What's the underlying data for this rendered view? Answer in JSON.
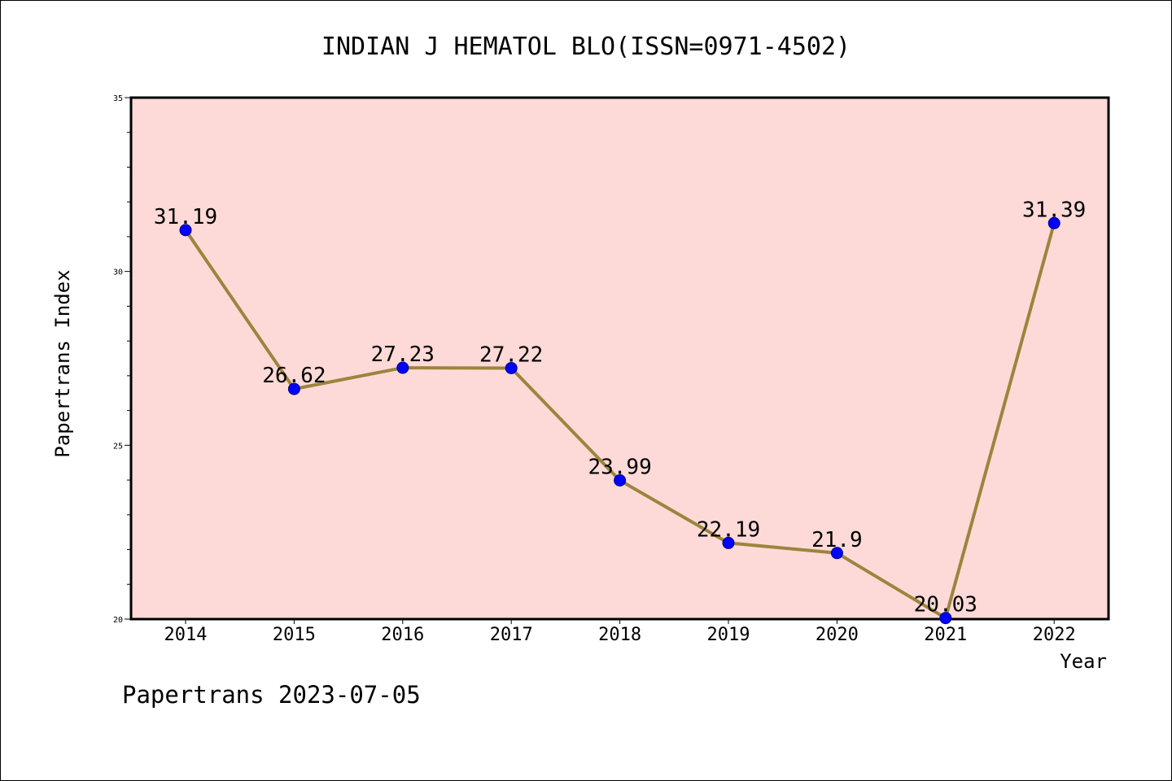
{
  "chart_data": {
    "type": "line",
    "title": "INDIAN J HEMATOL BLO(ISSN=0971-4502)",
    "xlabel": "Year",
    "ylabel": "Papertrans Index",
    "categories": [
      "2014",
      "2015",
      "2016",
      "2017",
      "2018",
      "2019",
      "2020",
      "2021",
      "2022"
    ],
    "values": [
      31.19,
      26.62,
      27.23,
      27.22,
      23.99,
      22.19,
      21.9,
      20.03,
      31.39
    ],
    "data_labels": [
      "31.19",
      "26.62",
      "27.23",
      "27.22",
      "23.99",
      "22.19",
      "21.9",
      "20.03",
      "31.39"
    ],
    "ylim": [
      20,
      35
    ],
    "yticks": [
      20,
      25,
      30,
      35
    ],
    "ytick_labels": [
      "20",
      "25",
      "30",
      "35"
    ],
    "grid": false,
    "legend": "none",
    "colors": {
      "plot_background": "#fddad7",
      "line": "#9b853d",
      "marker": "#0000ff"
    }
  },
  "footer": {
    "watermark": "Papertrans 2023-07-05"
  }
}
